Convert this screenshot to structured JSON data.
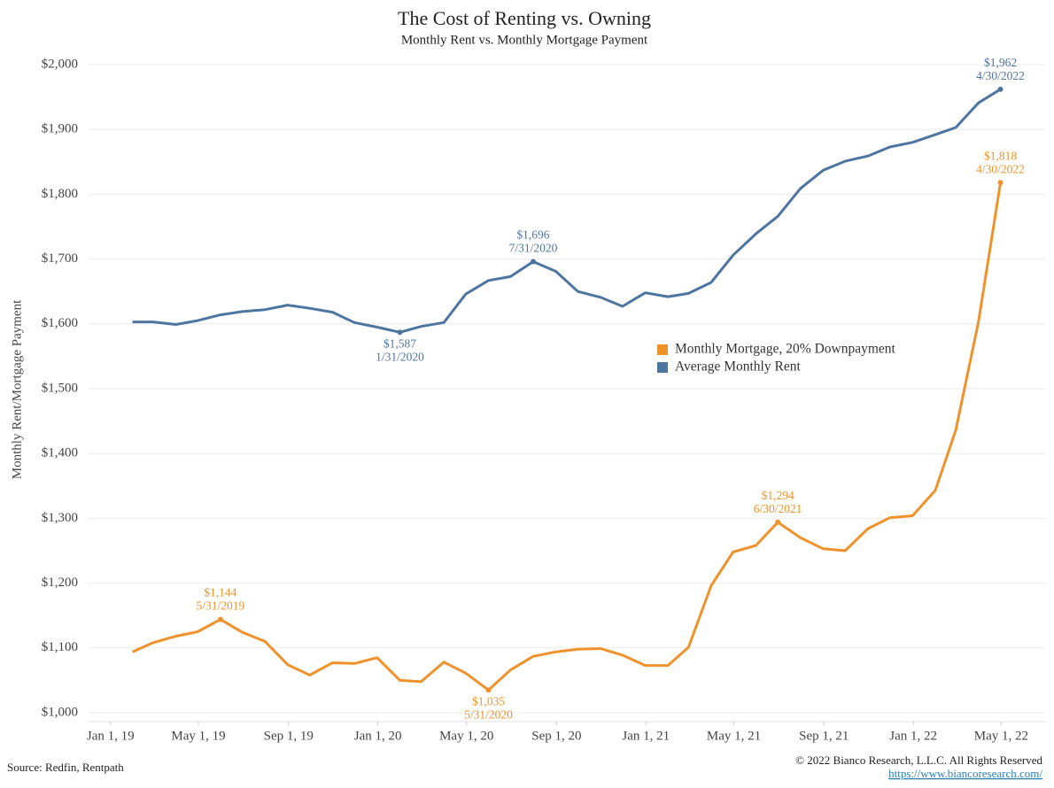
{
  "chart_data": {
    "type": "line",
    "title": "The Cost of Renting vs. Owning",
    "subtitle": "Monthly Rent vs. Monthly Mortgage Payment",
    "y_label": "Monthly Rent/Mortgage Payment",
    "source": "Source: Redfin, Rentpath",
    "copyright": "© 2022 Bianco Research, L.L.C. All Rights Reserved",
    "url": "https://www.biancoresearch.com/",
    "legend": "right",
    "grid": true,
    "x": [
      "1/31/2019",
      "2/28/2019",
      "3/31/2019",
      "4/30/2019",
      "5/31/2019",
      "6/30/2019",
      "7/31/2019",
      "8/31/2019",
      "9/30/2019",
      "10/31/2019",
      "11/30/2019",
      "12/31/2019",
      "1/31/2020",
      "2/29/2020",
      "3/31/2020",
      "4/30/2020",
      "5/31/2020",
      "6/30/2020",
      "7/31/2020",
      "8/31/2020",
      "9/30/2020",
      "10/31/2020",
      "11/30/2020",
      "12/31/2020",
      "1/31/2021",
      "2/28/2021",
      "3/31/2021",
      "4/30/2021",
      "5/31/2021",
      "6/30/2021",
      "7/31/2021",
      "8/31/2021",
      "9/30/2021",
      "10/31/2021",
      "11/30/2021",
      "12/31/2021",
      "1/31/2022",
      "2/28/2022",
      "3/31/2022",
      "4/30/2022"
    ],
    "xlim": [
      "12/2/2018",
      "6/30/2022"
    ],
    "xticks": [
      {
        "value": "1/1/2019",
        "label": "Jan 1, 19"
      },
      {
        "value": "5/1/2019",
        "label": "May 1, 19"
      },
      {
        "value": "9/1/2019",
        "label": "Sep 1, 19"
      },
      {
        "value": "1/1/2020",
        "label": "Jan 1, 20"
      },
      {
        "value": "5/1/2020",
        "label": "May 1, 20"
      },
      {
        "value": "9/1/2020",
        "label": "Sep 1, 20"
      },
      {
        "value": "1/1/2021",
        "label": "Jan 1, 21"
      },
      {
        "value": "5/1/2021",
        "label": "May 1, 21"
      },
      {
        "value": "9/1/2021",
        "label": "Sep 1, 21"
      },
      {
        "value": "1/1/2022",
        "label": "Jan 1, 22"
      },
      {
        "value": "5/1/2022",
        "label": "May 1, 22"
      }
    ],
    "ylim": [
      1000,
      2000
    ],
    "yticks": [
      {
        "value": 1000,
        "label": "$1,000"
      },
      {
        "value": 1100,
        "label": "$1,100"
      },
      {
        "value": 1200,
        "label": "$1,200"
      },
      {
        "value": 1300,
        "label": "$1,300"
      },
      {
        "value": 1400,
        "label": "$1,400"
      },
      {
        "value": 1500,
        "label": "$1,500"
      },
      {
        "value": 1600,
        "label": "$1,600"
      },
      {
        "value": 1700,
        "label": "$1,700"
      },
      {
        "value": 1800,
        "label": "$1,800"
      },
      {
        "value": 1900,
        "label": "$1,900"
      },
      {
        "value": 2000,
        "label": "$2,000"
      }
    ],
    "series": [
      {
        "name": "Monthly Mortgage, 20% Downpayment",
        "color": "#f0922b",
        "values": [
          1094,
          1108,
          1118,
          1125,
          1144,
          1124,
          1110,
          1074,
          1058,
          1077,
          1076,
          1085,
          1050,
          1048,
          1078,
          1061,
          1035,
          1066,
          1087,
          1094,
          1098,
          1099,
          1089,
          1073,
          1073,
          1101,
          1196,
          1248,
          1258,
          1294,
          1270,
          1253,
          1250,
          1284,
          1301,
          1304,
          1343,
          1436,
          1603,
          1818
        ],
        "value_labels": [
          null,
          null,
          null,
          null,
          "$1,144",
          null,
          null,
          null,
          null,
          null,
          null,
          null,
          null,
          null,
          null,
          null,
          "$1,035",
          null,
          null,
          null,
          null,
          null,
          null,
          null,
          null,
          null,
          null,
          null,
          null,
          "$1,294",
          null,
          null,
          null,
          null,
          null,
          null,
          null,
          null,
          null,
          "$1,818"
        ]
      },
      {
        "name": "Average Monthly Rent",
        "color": "#4e74a0",
        "values": [
          1603,
          1603,
          1599,
          1605,
          1614,
          1619,
          1622,
          1629,
          1624,
          1618,
          1602,
          1595,
          1587,
          1596,
          1602,
          1646,
          1667,
          1673,
          1696,
          1681,
          1650,
          1641,
          1627,
          1648,
          1642,
          1647,
          1664,
          1706,
          1739,
          1766,
          1809,
          1837,
          1851,
          1859,
          1873,
          1880,
          1892,
          1903,
          1941,
          1962
        ],
        "value_labels": [
          null,
          null,
          null,
          null,
          null,
          null,
          null,
          null,
          null,
          null,
          null,
          null,
          "$1,587",
          null,
          null,
          null,
          null,
          null,
          "$1,696",
          null,
          null,
          null,
          null,
          null,
          null,
          null,
          null,
          null,
          null,
          null,
          null,
          null,
          null,
          null,
          null,
          null,
          null,
          null,
          null,
          "$1,962"
        ]
      }
    ]
  }
}
